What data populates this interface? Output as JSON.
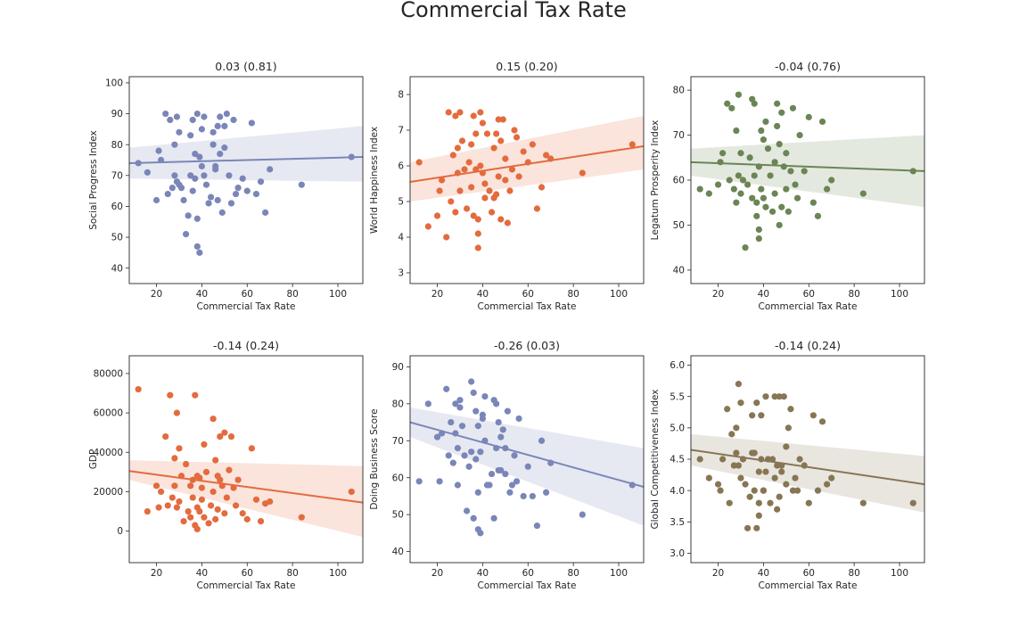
{
  "chart_data": {
    "type": "scatter",
    "title": "Commercial Tax Rate",
    "x": [
      12,
      16,
      20,
      21,
      22,
      24,
      25,
      26,
      27,
      28,
      28,
      29,
      29,
      30,
      30,
      31,
      32,
      33,
      34,
      35,
      35,
      36,
      36,
      37,
      37,
      38,
      38,
      38,
      39,
      39,
      40,
      40,
      41,
      41,
      42,
      43,
      44,
      45,
      45,
      46,
      46,
      47,
      47,
      48,
      48,
      49,
      50,
      50,
      51,
      52,
      53,
      54,
      55,
      56,
      58,
      60,
      62,
      64,
      66,
      68,
      70,
      84,
      106
    ],
    "panels": [
      {
        "title": "0.03 (0.81)",
        "xlabel": "Commercial Tax Rate",
        "ylabel": "Social Progress Index",
        "color": "#7a86b8",
        "xlim": [
          8,
          111
        ],
        "ylim": [
          35,
          102
        ],
        "xticks": [
          "20",
          "40",
          "60",
          "80",
          "100"
        ],
        "yticks": [
          "40",
          "50",
          "60",
          "70",
          "80",
          "90",
          "100"
        ],
        "fit": [
          74.0,
          76.0
        ],
        "band_lo": [
          69.0,
          68.0
        ],
        "band_hi": [
          79.0,
          86.0
        ],
        "y": [
          74,
          71,
          62,
          78,
          75,
          90,
          64,
          88,
          66,
          80,
          70,
          68,
          89,
          67,
          84,
          66,
          62,
          51,
          57,
          83,
          70,
          65,
          88,
          77,
          69,
          90,
          56,
          47,
          45,
          76,
          85,
          73,
          89,
          70,
          67,
          61,
          63,
          84,
          80,
          72,
          73,
          86,
          62,
          89,
          77,
          58,
          86,
          79,
          90,
          70,
          61,
          88,
          64,
          66,
          69,
          65,
          87,
          64,
          68,
          58,
          72,
          67,
          76
        ]
      },
      {
        "title": "0.15 (0.20)",
        "xlabel": "Commercial Tax Rate",
        "ylabel": "World Happiness Index",
        "color": "#e36b3e",
        "xlim": [
          8,
          111
        ],
        "ylim": [
          2.7,
          8.5
        ],
        "xticks": [
          "20",
          "40",
          "60",
          "80",
          "100"
        ],
        "yticks": [
          "3",
          "4",
          "5",
          "6",
          "7",
          "8"
        ],
        "fit": [
          5.55,
          6.55
        ],
        "band_lo": [
          5.0,
          5.9
        ],
        "band_hi": [
          6.1,
          7.4
        ],
        "y": [
          6.1,
          4.3,
          4.6,
          5.3,
          5.6,
          4.0,
          7.5,
          5.0,
          6.3,
          7.4,
          4.7,
          5.8,
          6.5,
          5.3,
          7.5,
          6.7,
          5.9,
          4.8,
          6.1,
          6.6,
          5.4,
          4.6,
          7.4,
          5.9,
          6.9,
          4.5,
          3.7,
          4.1,
          7.5,
          6.0,
          5.8,
          7.2,
          5.1,
          5.5,
          6.9,
          5.3,
          4.7,
          6.5,
          5.1,
          6.9,
          5.2,
          7.3,
          5.7,
          4.5,
          6.7,
          7.3,
          5.6,
          6.2,
          4.4,
          5.3,
          5.9,
          7.0,
          6.8,
          5.7,
          6.4,
          6.1,
          6.6,
          4.8,
          5.4,
          6.3,
          6.2,
          5.8,
          6.6
        ]
      },
      {
        "title": "-0.04 (0.76)",
        "xlabel": "Commercial Tax Rate",
        "ylabel": "Legatum Prosperity Index",
        "color": "#6b8554",
        "xlim": [
          8,
          111
        ],
        "ylim": [
          37,
          83
        ],
        "xticks": [
          "20",
          "40",
          "60",
          "80",
          "100"
        ],
        "yticks": [
          "40",
          "50",
          "60",
          "70",
          "80"
        ],
        "fit": [
          64.0,
          62.0
        ],
        "band_lo": [
          61.0,
          54.0
        ],
        "band_hi": [
          67.0,
          70.0
        ],
        "y": [
          58,
          57,
          59,
          64,
          66,
          77,
          60,
          76,
          58,
          71,
          55,
          61,
          79,
          57,
          66,
          60,
          45,
          59,
          65,
          78,
          56,
          61,
          77,
          55,
          52,
          49,
          63,
          47,
          71,
          58,
          69,
          56,
          73,
          54,
          67,
          61,
          53,
          64,
          57,
          77,
          72,
          68,
          50,
          54,
          75,
          63,
          58,
          66,
          53,
          62,
          76,
          59,
          56,
          70,
          62,
          74,
          55,
          52,
          73,
          58,
          60,
          57,
          62
        ]
      },
      {
        "title": "-0.14 (0.24)",
        "xlabel": "Commercial Tax Rate",
        "ylabel": "GDP",
        "color": "#e36b3e",
        "xlim": [
          8,
          111
        ],
        "ylim": [
          -16000,
          89000
        ],
        "xticks": [
          "20",
          "40",
          "60",
          "80",
          "100"
        ],
        "yticks": [
          "0",
          "20000",
          "40000",
          "60000",
          "80000"
        ],
        "fit": [
          30500,
          14500
        ],
        "band_lo": [
          26000,
          -3000
        ],
        "band_hi": [
          36000,
          33000
        ],
        "y": [
          72000,
          10000,
          23000,
          12000,
          20000,
          48000,
          13000,
          69000,
          17000,
          37000,
          23000,
          60000,
          12000,
          42000,
          15000,
          28000,
          5000,
          34000,
          10000,
          23000,
          7000,
          26000,
          17000,
          69000,
          3000,
          28000,
          12000,
          1000,
          27000,
          10000,
          22000,
          16000,
          44000,
          7000,
          30000,
          4000,
          13000,
          57000,
          20000,
          6000,
          36000,
          11000,
          28000,
          48000,
          26000,
          23000,
          50000,
          9000,
          17000,
          31000,
          48000,
          22000,
          13000,
          26000,
          9000,
          6000,
          42000,
          16000,
          5000,
          14000,
          15000,
          7000,
          20000
        ]
      },
      {
        "title": "-0.26 (0.03)",
        "xlabel": "Commercial Tax Rate",
        "ylabel": "Doing Business Score",
        "color": "#7a86b8",
        "xlim": [
          8,
          111
        ],
        "ylim": [
          37,
          93
        ],
        "xticks": [
          "20",
          "40",
          "60",
          "80",
          "100"
        ],
        "yticks": [
          "40",
          "50",
          "60",
          "70",
          "80",
          "90"
        ],
        "fit": [
          75.0,
          57.5
        ],
        "band_lo": [
          71.0,
          47.0
        ],
        "band_hi": [
          79.0,
          68.0
        ],
        "y": [
          59,
          80,
          71,
          59,
          72,
          84,
          66,
          75,
          64,
          80,
          72,
          68,
          58,
          81,
          79,
          74,
          66,
          51,
          63,
          86,
          67,
          49,
          83,
          65,
          78,
          56,
          46,
          74,
          45,
          67,
          77,
          76,
          82,
          70,
          58,
          58,
          61,
          49,
          81,
          68,
          80,
          62,
          75,
          62,
          71,
          73,
          68,
          61,
          78,
          56,
          58,
          66,
          59,
          76,
          55,
          63,
          55,
          47,
          70,
          56,
          64,
          50,
          58
        ]
      },
      {
        "title": "-0.14 (0.24)",
        "xlabel": "Commercial Tax Rate",
        "ylabel": "Global Competitiveness Index",
        "color": "#877654",
        "xlim": [
          8,
          111
        ],
        "ylim": [
          2.85,
          6.15
        ],
        "xticks": [
          "20",
          "40",
          "60",
          "80",
          "100"
        ],
        "yticks": [
          "3.0",
          "3.5",
          "4.0",
          "4.5",
          "5.0",
          "5.5",
          "6.0"
        ],
        "fit": [
          4.65,
          4.1
        ],
        "band_lo": [
          4.4,
          3.65
        ],
        "band_hi": [
          4.9,
          4.55
        ],
        "y": [
          4.5,
          4.2,
          4.1,
          4.0,
          4.5,
          5.3,
          3.8,
          4.9,
          4.4,
          5.0,
          4.6,
          4.4,
          5.7,
          4.2,
          5.4,
          4.5,
          4.1,
          3.4,
          3.9,
          4.6,
          5.2,
          4.0,
          4.6,
          3.4,
          5.4,
          4.3,
          3.6,
          3.8,
          5.2,
          4.5,
          4.0,
          4.0,
          5.5,
          4.3,
          4.5,
          3.8,
          4.5,
          5.5,
          4.2,
          3.7,
          4.4,
          5.5,
          3.9,
          4.3,
          4.4,
          5.5,
          4.7,
          4.1,
          5.0,
          5.3,
          4.0,
          4.2,
          4.0,
          4.5,
          4.4,
          3.8,
          5.2,
          4.0,
          5.1,
          4.1,
          4.2,
          3.8,
          3.8
        ]
      }
    ]
  }
}
